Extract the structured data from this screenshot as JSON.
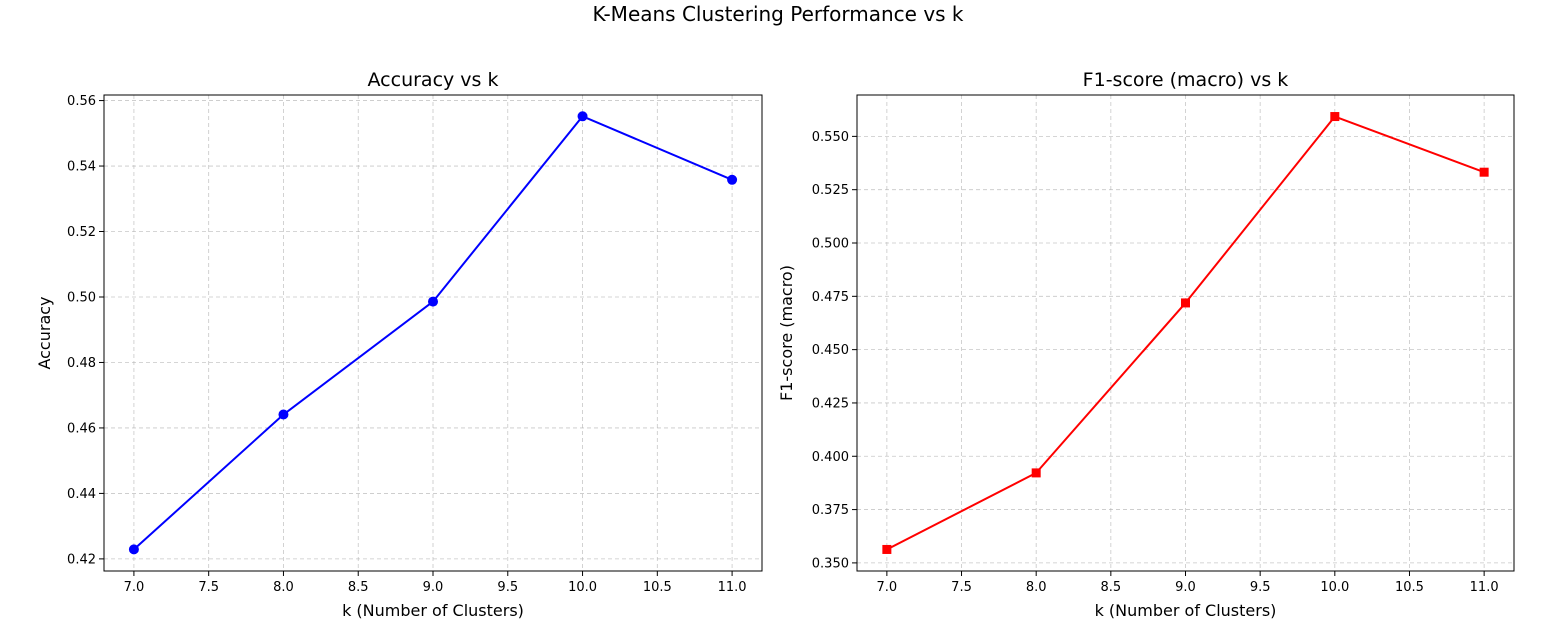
{
  "figure": {
    "suptitle": "K-Means Clustering Performance vs k"
  },
  "chart_data": [
    {
      "type": "line",
      "title": "Accuracy vs k",
      "xlabel": "k (Number of Clusters)",
      "ylabel": "Accuracy",
      "x": [
        7.0,
        8.0,
        9.0,
        10.0,
        11.0
      ],
      "series": [
        {
          "values": [
            0.4229,
            0.4641,
            0.4986,
            0.5552,
            0.5358
          ],
          "color": "#0000ff",
          "marker": "circle"
        }
      ],
      "xticks": [
        "7.0",
        "7.5",
        "8.0",
        "8.5",
        "9.0",
        "9.5",
        "10.0",
        "10.5",
        "11.0"
      ],
      "yticks": [
        "0.42",
        "0.44",
        "0.46",
        "0.48",
        "0.50",
        "0.52",
        "0.54",
        "0.56"
      ],
      "xlim": [
        6.8,
        11.2
      ],
      "ylim": [
        0.4163,
        0.5617
      ],
      "grid": true
    },
    {
      "type": "line",
      "title": "F1-score (macro) vs k",
      "xlabel": "k (Number of Clusters)",
      "ylabel": "F1-score (macro)",
      "x": [
        7.0,
        8.0,
        9.0,
        10.0,
        11.0
      ],
      "series": [
        {
          "values": [
            0.3563,
            0.3922,
            0.4719,
            0.5593,
            0.5332
          ],
          "color": "#ff0000",
          "marker": "square"
        }
      ],
      "xticks": [
        "7.0",
        "7.5",
        "8.0",
        "8.5",
        "9.0",
        "9.5",
        "10.0",
        "10.5",
        "11.0"
      ],
      "yticks": [
        "0.350",
        "0.375",
        "0.400",
        "0.425",
        "0.450",
        "0.475",
        "0.500",
        "0.525",
        "0.550"
      ],
      "xlim": [
        6.8,
        11.2
      ],
      "ylim": [
        0.3462,
        0.5694
      ],
      "grid": true
    }
  ]
}
